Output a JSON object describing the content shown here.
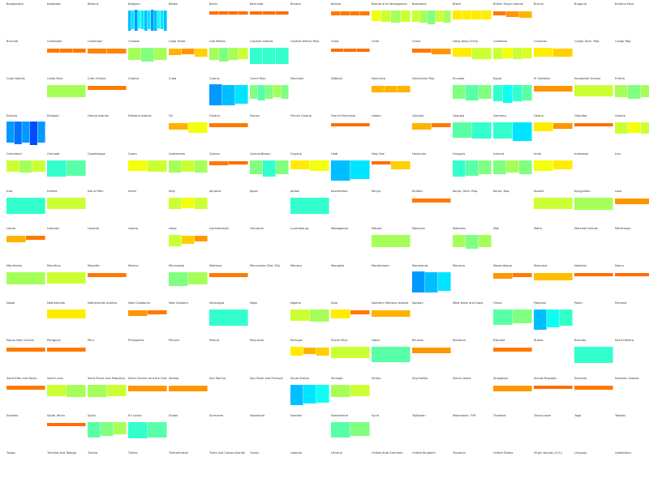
{
  "chart_data": {
    "type": "small-multiples-bar",
    "grid": {
      "columns": 16,
      "rows": 13
    },
    "color_scale": [
      "#0000ff",
      "#00ffff",
      "#ffff00",
      "#ff4000"
    ],
    "value_range": [
      0,
      1
    ],
    "panels": [
      {
        "label": "Bangladesh",
        "bars": []
      },
      {
        "label": "Barbados",
        "bars": []
      },
      {
        "label": "Belarus",
        "bars": []
      },
      {
        "label": "Belgium",
        "bars": [
          0.25,
          0.3,
          0.2,
          0.35,
          0.3,
          0.25,
          0.3,
          0.2,
          0.25,
          0.35,
          0.3,
          0.25
        ]
      },
      {
        "label": "Belize",
        "bars": []
      },
      {
        "label": "Benin",
        "bars": [
          0.92,
          0.92,
          0.92,
          0.92
        ]
      },
      {
        "label": "Bermuda",
        "bars": [
          0.92,
          0.92,
          0.92
        ]
      },
      {
        "label": "Bhutan",
        "bars": []
      },
      {
        "label": "Bolivia",
        "bars": [
          0.9,
          0.9,
          0.9,
          0.9
        ]
      },
      {
        "label": "Bosnia and Herzegovina",
        "bars": [
          0.65,
          0.6,
          0.55,
          0.6
        ]
      },
      {
        "label": "Botswana",
        "bars": [
          0.6,
          0.55,
          0.5,
          0.6,
          0.55
        ]
      },
      {
        "label": "Brazil",
        "bars": [
          0.7,
          0.7,
          0.7,
          0.7
        ]
      },
      {
        "label": "British Virgin Islands",
        "bars": [
          0.9,
          0.85,
          0.8
        ]
      },
      {
        "label": "Brunei",
        "bars": []
      },
      {
        "label": "Bulgaria",
        "bars": []
      },
      {
        "label": "Burkina Faso",
        "bars": []
      },
      {
        "label": "Burundi",
        "bars": []
      },
      {
        "label": "Cambodia",
        "bars": [
          0.9,
          0.9,
          0.9
        ]
      },
      {
        "label": "Cameroon",
        "bars": [
          0.88,
          0.88
        ]
      },
      {
        "label": "Canada",
        "bars": [
          0.55,
          0.5,
          0.55
        ]
      },
      {
        "label": "Cape Verde",
        "bars": [
          0.8,
          0.85,
          0.75
        ]
      },
      {
        "label": "Cab Melian",
        "bars": [
          0.55,
          0.5,
          0.55,
          0.6
        ]
      },
      {
        "label": "Cayman Islands",
        "bars": [
          0.4,
          0.4,
          0.4
        ]
      },
      {
        "label": "Central African Rep.",
        "bars": []
      },
      {
        "label": "Chad",
        "bars": [
          0.92,
          0.92,
          0.92
        ]
      },
      {
        "label": "Chile",
        "bars": []
      },
      {
        "label": "China",
        "bars": [
          0.9,
          0.85
        ]
      },
      {
        "label": "Hong Kong China",
        "bars": [
          0.7,
          0.6
        ]
      },
      {
        "label": "Colombia",
        "bars": [
          0.6,
          0.65,
          0.6,
          0.62
        ]
      },
      {
        "label": "Comoros",
        "bars": [
          0.7,
          0.75
        ]
      },
      {
        "label": "Congo Dem. Rep.",
        "bars": []
      },
      {
        "label": "Congo Rep.",
        "bars": []
      },
      {
        "label": "Cook Islands",
        "bars": []
      },
      {
        "label": "Costa Rica",
        "bars": [
          0.55
        ]
      },
      {
        "label": "Cote d'Ivoire",
        "bars": [
          0.9
        ]
      },
      {
        "label": "Croatia",
        "bars": []
      },
      {
        "label": "Cuba",
        "bars": []
      },
      {
        "label": "Cyprus",
        "bars": [
          0.2,
          0.25,
          0.3
        ]
      },
      {
        "label": "Czech Rep.",
        "bars": [
          0.5,
          0.45,
          0.5,
          0.55,
          0.5
        ]
      },
      {
        "label": "Denmark",
        "bars": []
      },
      {
        "label": "Djibouti",
        "bars": []
      },
      {
        "label": "Dominica",
        "bars": [
          0.8,
          0.8,
          0.8
        ]
      },
      {
        "label": "Dominican Rep.",
        "bars": []
      },
      {
        "label": "Ecuador",
        "bars": [
          0.5,
          0.45,
          0.5
        ]
      },
      {
        "label": "Egypt",
        "bars": [
          0.4,
          0.35,
          0.4,
          0.45
        ]
      },
      {
        "label": "El Salvador",
        "bars": [
          0.85
        ]
      },
      {
        "label": "Equatorial Guinea",
        "bars": [
          0.6
        ]
      },
      {
        "label": "Eritrea",
        "bars": [
          0.55,
          0.5,
          0.55
        ]
      },
      {
        "label": "Estonia",
        "bars": [
          0.2,
          0.15,
          0.2,
          0.1,
          0.2
        ]
      },
      {
        "label": "Ethiopia",
        "bars": []
      },
      {
        "label": "Faeroe Islands",
        "bars": []
      },
      {
        "label": "Falkland Islands",
        "bars": []
      },
      {
        "label": "Fiji",
        "bars": [
          0.8,
          0.65
        ]
      },
      {
        "label": "Finland",
        "bars": [
          0.9
        ]
      },
      {
        "label": "France",
        "bars": []
      },
      {
        "label": "French Guiana",
        "bars": []
      },
      {
        "label": "French Polynesia",
        "bars": [
          0.92
        ]
      },
      {
        "label": "Gabon",
        "bars": []
      },
      {
        "label": "Gambia",
        "bars": [
          0.8,
          0.9
        ]
      },
      {
        "label": "Georgia",
        "bars": [
          0.45,
          0.4
        ]
      },
      {
        "label": "Germany",
        "bars": [
          0.4,
          0.3
        ]
      },
      {
        "label": "Ghana",
        "bars": [
          0.7,
          0.85
        ]
      },
      {
        "label": "Gibraltar",
        "bars": [
          0.92
        ]
      },
      {
        "label": "Greece",
        "bars": [
          0.6,
          0.65,
          0.6
        ]
      },
      {
        "label": "Greenland",
        "bars": [
          0.6,
          0.55,
          0.6
        ]
      },
      {
        "label": "Grenada",
        "bars": [
          0.4,
          0.45
        ]
      },
      {
        "label": "Guadeloupe",
        "bars": []
      },
      {
        "label": "Guam",
        "bars": [
          0.65,
          0.6
        ]
      },
      {
        "label": "Guatemala",
        "bars": [
          0.55,
          0.6,
          0.55
        ]
      },
      {
        "label": "Guinea",
        "bars": [
          0.9,
          0.92
        ]
      },
      {
        "label": "Guinea-Bissau",
        "bars": [
          0.5,
          0.4,
          0.5
        ]
      },
      {
        "label": "Guyana",
        "bars": [
          0.7,
          0.65
        ]
      },
      {
        "label": "Haiti",
        "bars": [
          0.25,
          0.3
        ]
      },
      {
        "label": "Holy See",
        "bars": [
          0.92,
          0.75
        ]
      },
      {
        "label": "Honduras",
        "bars": []
      },
      {
        "label": "Hungary",
        "bars": [
          0.4,
          0.45,
          0.5
        ]
      },
      {
        "label": "Iceland",
        "bars": [
          0.5,
          0.55,
          0.5
        ]
      },
      {
        "label": "India",
        "bars": [
          0.65,
          0.7
        ]
      },
      {
        "label": "Indonesia",
        "bars": []
      },
      {
        "label": "Iran",
        "bars": []
      },
      {
        "label": "Iraq",
        "bars": [
          0.4
        ]
      },
      {
        "label": "Ireland",
        "bars": [
          0.6
        ]
      },
      {
        "label": "Isle of Man",
        "bars": []
      },
      {
        "label": "Israel",
        "bars": []
      },
      {
        "label": "Italy",
        "bars": [
          0.6,
          0.65,
          0.6
        ]
      },
      {
        "label": "Jamaica",
        "bars": []
      },
      {
        "label": "Japan",
        "bars": []
      },
      {
        "label": "Jordan",
        "bars": [
          0.4
        ]
      },
      {
        "label": "Kazakhstan",
        "bars": []
      },
      {
        "label": "Kenya",
        "bars": []
      },
      {
        "label": "Kiribati",
        "bars": [
          0.9
        ]
      },
      {
        "label": "Korea, Dem. Rep.",
        "bars": []
      },
      {
        "label": "Korea, Rep.",
        "bars": []
      },
      {
        "label": "Kuwait",
        "bars": [
          0.6
        ]
      },
      {
        "label": "Kyrgyzstan",
        "bars": [
          0.55
        ]
      },
      {
        "label": "Laos",
        "bars": [
          0.85
        ]
      },
      {
        "label": "Latvia",
        "bars": [
          0.8,
          0.9
        ]
      },
      {
        "label": "Lebanon",
        "bars": []
      },
      {
        "label": "Lesotho",
        "bars": []
      },
      {
        "label": "Liberia",
        "bars": []
      },
      {
        "label": "Libya",
        "bars": [
          0.6,
          0.75,
          0.85
        ]
      },
      {
        "label": "Liechtenstein",
        "bars": []
      },
      {
        "label": "Lithuania",
        "bars": []
      },
      {
        "label": "Luxembourg",
        "bars": []
      },
      {
        "label": "Madagascar",
        "bars": []
      },
      {
        "label": "Malawi",
        "bars": [
          0.55
        ]
      },
      {
        "label": "Malaysia",
        "bars": []
      },
      {
        "label": "Maldives",
        "bars": [
          0.55,
          0.5,
          0.55
        ]
      },
      {
        "label": "Mali",
        "bars": []
      },
      {
        "label": "Malta",
        "bars": []
      },
      {
        "label": "Marshall Islands",
        "bars": []
      },
      {
        "label": "Martinique",
        "bars": []
      },
      {
        "label": "Mauritania",
        "bars": [
          0.55
        ]
      },
      {
        "label": "Mauritius",
        "bars": [
          0.6
        ]
      },
      {
        "label": "Mayotte",
        "bars": [
          0.9
        ]
      },
      {
        "label": "Mexico",
        "bars": []
      },
      {
        "label": "Micronesia",
        "bars": [
          0.5,
          0.55
        ]
      },
      {
        "label": "Moldova",
        "bars": [
          0.9
        ]
      },
      {
        "label": "Micronesia (Fed. Sts)",
        "bars": []
      },
      {
        "label": "Monaco",
        "bars": []
      },
      {
        "label": "Mongolia",
        "bars": []
      },
      {
        "label": "Montenegro",
        "bars": []
      },
      {
        "label": "Montserrat",
        "bars": [
          0.2,
          0.25,
          0.3
        ]
      },
      {
        "label": "Morocco",
        "bars": []
      },
      {
        "label": "Mozambique",
        "bars": [
          0.85,
          0.9
        ]
      },
      {
        "label": "Myanmar",
        "bars": [
          0.78
        ]
      },
      {
        "label": "Namibia",
        "bars": [
          0.92
        ]
      },
      {
        "label": "Nauru",
        "bars": [
          0.92
        ]
      },
      {
        "label": "Nepal",
        "bars": []
      },
      {
        "label": "Netherlands",
        "bars": [
          0.7
        ]
      },
      {
        "label": "Netherlands Antilles",
        "bars": []
      },
      {
        "label": "New Caledonia",
        "bars": [
          0.85,
          0.9
        ]
      },
      {
        "label": "New Zealand",
        "bars": []
      },
      {
        "label": "Nicaragua",
        "bars": [
          0.4
        ]
      },
      {
        "label": "Niger",
        "bars": []
      },
      {
        "label": "Nigeria",
        "bars": [
          0.6,
          0.55
        ]
      },
      {
        "label": "Niue",
        "bars": [
          0.7,
          0.9
        ]
      },
      {
        "label": "Northern Mariana Islands",
        "bars": [
          0.8
        ]
      },
      {
        "label": "Norway",
        "bars": []
      },
      {
        "label": "West Bank and Gaza",
        "bars": []
      },
      {
        "label": "Oman",
        "bars": [
          0.45,
          0.5
        ]
      },
      {
        "label": "Pakistan",
        "bars": [
          0.25,
          0.35,
          0.4
        ]
      },
      {
        "label": "Palau",
        "bars": []
      },
      {
        "label": "Panama",
        "bars": []
      },
      {
        "label": "Papua New Guinea",
        "bars": [
          0.9
        ]
      },
      {
        "label": "Paraguay",
        "bars": [
          0.9
        ]
      },
      {
        "label": "Peru",
        "bars": []
      },
      {
        "label": "Philippines",
        "bars": []
      },
      {
        "label": "Pitcairn",
        "bars": []
      },
      {
        "label": "Poland",
        "bars": []
      },
      {
        "label": "Polynesia",
        "bars": []
      },
      {
        "label": "Portugal",
        "bars": [
          0.7,
          0.8,
          0.75
        ]
      },
      {
        "label": "Puerto Rico",
        "bars": [
          0.6
        ]
      },
      {
        "label": "Qatar",
        "bars": [
          0.45
        ]
      },
      {
        "label": "Reunion",
        "bars": [
          0.85
        ]
      },
      {
        "label": "Romania",
        "bars": []
      },
      {
        "label": "Rwanda",
        "bars": [
          0.9
        ]
      },
      {
        "label": "Russia",
        "bars": []
      },
      {
        "label": "Rwanda",
        "bars": [
          0.4
        ]
      },
      {
        "label": "Saint Helena",
        "bars": []
      },
      {
        "label": "Saint Kitts and Nevis",
        "bars": [
          0.9
        ]
      },
      {
        "label": "Saint Lucia",
        "bars": [
          0.6,
          0.55
        ]
      },
      {
        "label": "Saint Pierre and Miquelon",
        "bars": [
          0.55,
          0.6
        ]
      },
      {
        "label": "Saint Vincent and the Grenadines",
        "bars": [
          0.85
        ]
      },
      {
        "label": "Samoa",
        "bars": [
          0.85
        ]
      },
      {
        "label": "San Marino",
        "bars": []
      },
      {
        "label": "Sao Tome and Principe",
        "bars": []
      },
      {
        "label": "Saudi Arabia",
        "bars": [
          0.25,
          0.3,
          0.35
        ]
      },
      {
        "label": "Senegal",
        "bars": [
          0.55,
          0.6
        ]
      },
      {
        "label": "Serbia",
        "bars": []
      },
      {
        "label": "Seychelles",
        "bars": []
      },
      {
        "label": "Sierra Leone",
        "bars": []
      },
      {
        "label": "Singapore",
        "bars": [
          0.85
        ]
      },
      {
        "label": "Slovak Republic",
        "bars": [
          0.92
        ]
      },
      {
        "label": "Slovenia",
        "bars": [
          0.9
        ]
      },
      {
        "label": "Solomon Islands",
        "bars": []
      },
      {
        "label": "Somalia",
        "bars": []
      },
      {
        "label": "South Africa",
        "bars": [
          0.92
        ]
      },
      {
        "label": "Spain",
        "bars": [
          0.45,
          0.5,
          0.55
        ]
      },
      {
        "label": "Sri Lanka",
        "bars": [
          0.4,
          0.45
        ]
      },
      {
        "label": "Sudan",
        "bars": []
      },
      {
        "label": "Suriname",
        "bars": []
      },
      {
        "label": "Swaziland",
        "bars": []
      },
      {
        "label": "Sweden",
        "bars": []
      },
      {
        "label": "Switzerland",
        "bars": [
          0.45,
          0.5
        ]
      },
      {
        "label": "Syria",
        "bars": []
      },
      {
        "label": "Tajikistan",
        "bars": []
      },
      {
        "label": "Macedonia, FYR",
        "bars": []
      },
      {
        "label": "Thailand",
        "bars": []
      },
      {
        "label": "Timor-Leste",
        "bars": []
      },
      {
        "label": "Togo",
        "bars": []
      },
      {
        "label": "Tokelau",
        "bars": []
      },
      {
        "label": "Tonga",
        "bars": []
      },
      {
        "label": "Trinidad and Tobago",
        "bars": []
      },
      {
        "label": "Tunisia",
        "bars": []
      },
      {
        "label": "Turkey",
        "bars": []
      },
      {
        "label": "Turkmenistan",
        "bars": []
      },
      {
        "label": "Turks and Caicos Islands",
        "bars": []
      },
      {
        "label": "Tuvalu",
        "bars": []
      },
      {
        "label": "Uganda",
        "bars": []
      },
      {
        "label": "Ukraine",
        "bars": []
      },
      {
        "label": "United Arab Emirates",
        "bars": []
      },
      {
        "label": "United Kingdom",
        "bars": []
      },
      {
        "label": "Tanzania",
        "bars": []
      },
      {
        "label": "United States",
        "bars": []
      },
      {
        "label": "Virgin Islands (U.S.)",
        "bars": []
      },
      {
        "label": "Uruguay",
        "bars": []
      },
      {
        "label": "Uzbekistan",
        "bars": []
      }
    ]
  }
}
